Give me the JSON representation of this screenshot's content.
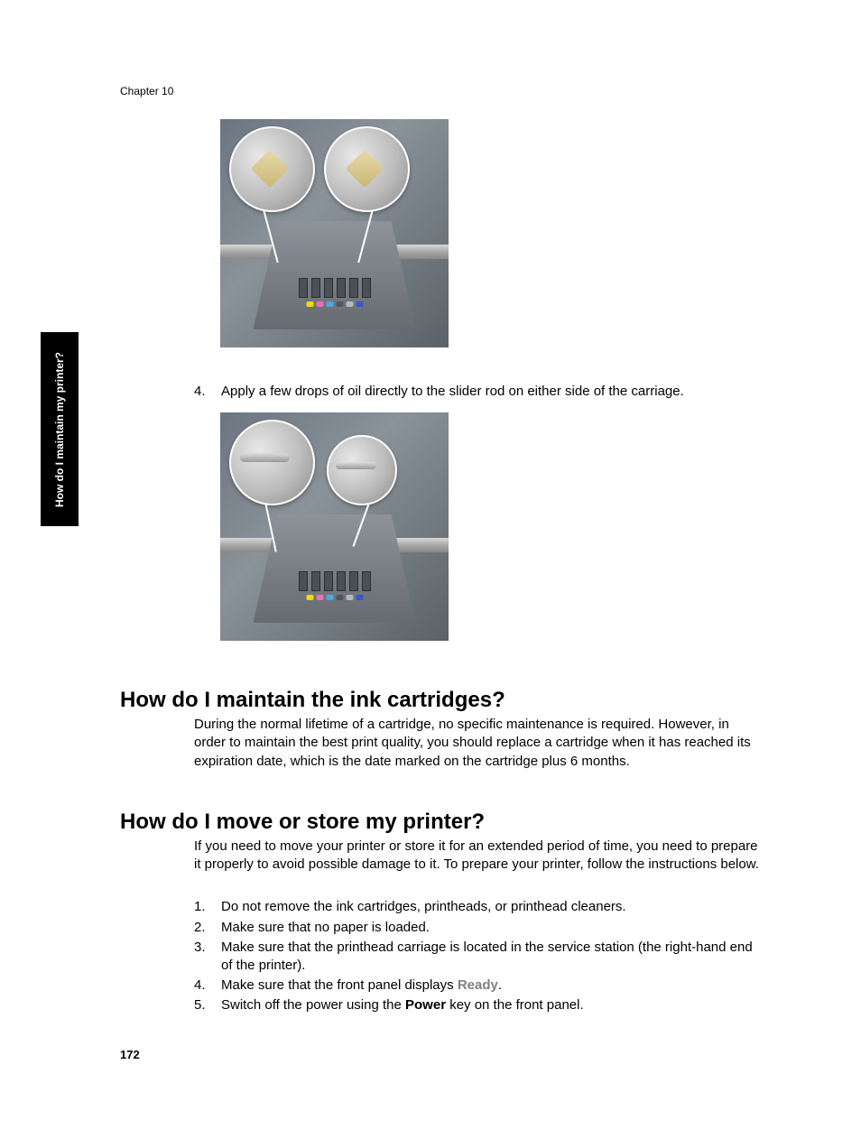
{
  "chapter_header": "Chapter 10",
  "side_tab": "How do I maintain my printer?",
  "step4": {
    "num": "4.",
    "text": "Apply a few drops of oil directly to the slider rod on either side of the carriage."
  },
  "heading1": "How do I maintain the ink cartridges?",
  "para1": "During the normal lifetime of a cartridge, no specific maintenance is required. However, in order to maintain the best print quality, you should replace a cartridge when it has reached its expiration date, which is the date marked on the cartridge plus 6 months.",
  "heading2": "How do I move or store my printer?",
  "para2": "If you need to move your printer or store it for an extended period of time, you need to prepare it properly to avoid possible damage to it. To prepare your printer, follow the instructions below.",
  "list": {
    "i1": {
      "num": "1.",
      "text": "Do not remove the ink cartridges, printheads, or printhead cleaners."
    },
    "i2": {
      "num": "2.",
      "text": "Make sure that no paper is loaded."
    },
    "i3": {
      "num": "3.",
      "text": "Make sure that the printhead carriage is located in the service station (the right-hand end of the printer)."
    },
    "i4": {
      "num": "4.",
      "prefix": "Make sure that the front panel displays ",
      "ready": "Ready",
      "suffix": "."
    },
    "i5": {
      "num": "5.",
      "prefix": "Switch off the power using the ",
      "power": "Power",
      "suffix": " key on the front panel."
    }
  },
  "page_number": "172",
  "ink_colors": [
    "#f5d800",
    "#e86fb8",
    "#4aa8e8",
    "#555555",
    "#b8b8b8",
    "#3858c8"
  ],
  "figure": {
    "bg_gradient": [
      "#6b7580",
      "#8a929a",
      "#5a6268"
    ],
    "carriage_gradient": [
      "#8e9399",
      "#666b71"
    ],
    "rod_gradient": [
      "#d8d8d8",
      "#a8a8a8",
      "#888888"
    ],
    "callout_gradient": [
      "#e8e8e8",
      "#bcbcbc",
      "#8a8a8a"
    ],
    "oil_gradient": [
      "#e8d9a8",
      "#c9b878"
    ],
    "slot_bg": "#4a5055",
    "slot_border": "#2a2e32"
  }
}
